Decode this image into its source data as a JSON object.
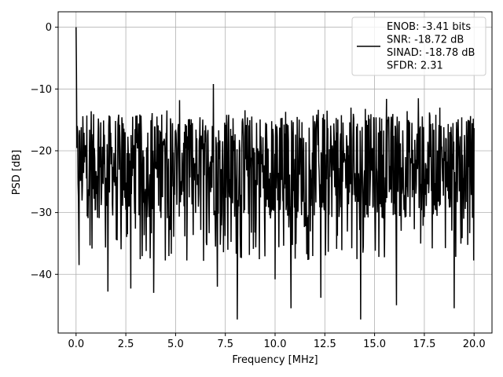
{
  "chart_data": {
    "type": "line",
    "title": "",
    "xlabel": "Frequency [MHz]",
    "ylabel": "PSD [dB]",
    "xlim": [
      -0.9,
      20.9
    ],
    "ylim": [
      -49.5,
      2.5
    ],
    "x_ticks": [
      0.0,
      2.5,
      5.0,
      7.5,
      10.0,
      12.5,
      15.0,
      17.5,
      20.0
    ],
    "x_tick_labels": [
      "0.0",
      "2.5",
      "5.0",
      "7.5",
      "10.0",
      "12.5",
      "15.0",
      "17.5",
      "20.0"
    ],
    "y_ticks": [
      0,
      -10,
      -20,
      -30,
      -40
    ],
    "y_tick_labels": [
      "0",
      "−10",
      "−20",
      "−30",
      "−40"
    ],
    "grid": true,
    "legend_placement": "top-right",
    "line_color": "#000000",
    "series": [
      {
        "name": "ENOB: -3.41 bits\nSNR: -18.72 dB\nSINAD: -18.78 dB\nSFDR: 2.31",
        "x_range": [
          0.0,
          20.0
        ],
        "n_points": 1000,
        "noise_band": [
          -31,
          -14
        ],
        "peaks": [
          {
            "x": 0.0,
            "y": 0.0
          },
          {
            "x": 0.02,
            "y": -7.5
          },
          {
            "x": 6.9,
            "y": -9.2
          },
          {
            "x": 10.8,
            "y": -9.8
          },
          {
            "x": 12.3,
            "y": -11.0
          },
          {
            "x": 5.2,
            "y": -11.8
          },
          {
            "x": 15.6,
            "y": -11.6
          },
          {
            "x": 17.2,
            "y": -11.5
          }
        ],
        "dips": [
          {
            "x": 0.15,
            "y": -38.5
          },
          {
            "x": 1.6,
            "y": -42.8
          },
          {
            "x": 2.75,
            "y": -42.3
          },
          {
            "x": 3.9,
            "y": -43.0
          },
          {
            "x": 7.1,
            "y": -42.0
          },
          {
            "x": 8.1,
            "y": -47.3
          },
          {
            "x": 10.0,
            "y": -40.8
          },
          {
            "x": 10.8,
            "y": -45.5
          },
          {
            "x": 12.3,
            "y": -43.8
          },
          {
            "x": 14.3,
            "y": -47.3
          },
          {
            "x": 16.1,
            "y": -45.0
          },
          {
            "x": 19.0,
            "y": -45.5
          }
        ]
      }
    ]
  },
  "legend": {
    "lines": [
      "ENOB: -3.41 bits",
      "SNR: -18.72 dB",
      "SINAD: -18.78 dB",
      "SFDR: 2.31"
    ]
  }
}
